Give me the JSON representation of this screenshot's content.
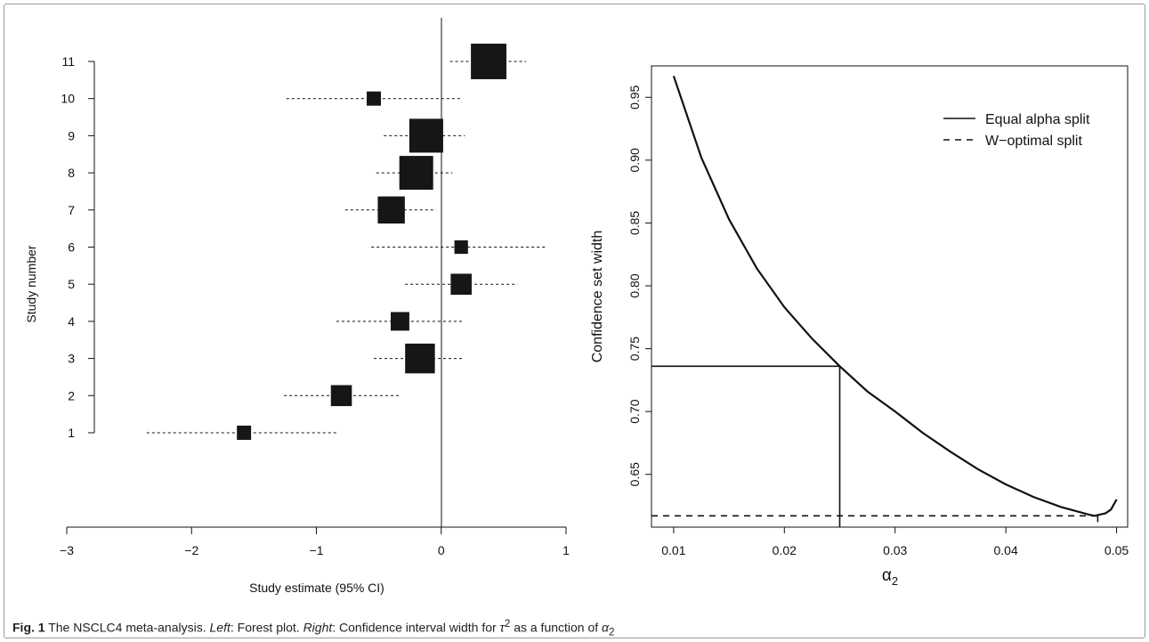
{
  "caption": {
    "label": "Fig. 1",
    "text_1": " The NSCLC4 meta-analysis. ",
    "left_word": "Left",
    "text_2": ": Forest plot. ",
    "right_word": "Right",
    "text_3": ": Confidence interval width for ",
    "tau_symbol": "τ",
    "tau_exp": "2",
    "text_4": " as a function of ",
    "alpha_symbol": "α",
    "alpha_sub": "2"
  },
  "chart_data": [
    {
      "type": "scatter",
      "subtype": "forest",
      "xlabel": "Study estimate (95% CI)",
      "ylabel": "Study number",
      "xlim": [
        -3,
        1
      ],
      "xticks": [
        -3,
        -2,
        -1,
        0,
        1
      ],
      "xtick_labels": [
        "−3",
        "−2",
        "−1",
        "0",
        "1"
      ],
      "yticks": [
        1,
        2,
        3,
        4,
        5,
        6,
        7,
        8,
        9,
        10,
        11
      ],
      "yticklabels": [
        "1",
        "2",
        "3",
        "4",
        "5",
        "6",
        "7",
        "8",
        "9",
        "10",
        "11"
      ],
      "reference_line_x": 0,
      "grid": false,
      "studies": [
        {
          "study": 1,
          "estimate": -1.58,
          "lower": -2.36,
          "upper": -0.82,
          "weight": 0.42
        },
        {
          "study": 2,
          "estimate": -0.8,
          "lower": -1.26,
          "upper": -0.34,
          "weight": 0.62
        },
        {
          "study": 3,
          "estimate": -0.17,
          "lower": -0.54,
          "upper": 0.18,
          "weight": 0.88
        },
        {
          "study": 4,
          "estimate": -0.33,
          "lower": -0.84,
          "upper": 0.18,
          "weight": 0.55
        },
        {
          "study": 5,
          "estimate": 0.16,
          "lower": -0.29,
          "upper": 0.61,
          "weight": 0.62
        },
        {
          "study": 6,
          "estimate": 0.16,
          "lower": -0.56,
          "upper": 0.84,
          "weight": 0.4
        },
        {
          "study": 7,
          "estimate": -0.4,
          "lower": -0.77,
          "upper": -0.04,
          "weight": 0.8
        },
        {
          "study": 8,
          "estimate": -0.2,
          "lower": -0.52,
          "upper": 0.09,
          "weight": 1.0
        },
        {
          "study": 9,
          "estimate": -0.12,
          "lower": -0.46,
          "upper": 0.19,
          "weight": 1.0
        },
        {
          "study": 10,
          "estimate": -0.54,
          "lower": -1.24,
          "upper": 0.16,
          "weight": 0.42
        },
        {
          "study": 11,
          "estimate": 0.38,
          "lower": 0.07,
          "upper": 0.68,
          "weight": 1.05
        }
      ]
    },
    {
      "type": "line",
      "xlabel_symbol": "α",
      "xlabel_sub": "2",
      "ylabel": "Confidence set width",
      "xlim": [
        0.008,
        0.051
      ],
      "ylim": [
        0.608,
        0.975
      ],
      "xticks": [
        0.01,
        0.02,
        0.03,
        0.04,
        0.05
      ],
      "xtick_labels": [
        "0.01",
        "0.02",
        "0.03",
        "0.04",
        "0.05"
      ],
      "yticks": [
        0.65,
        0.7,
        0.75,
        0.8,
        0.85,
        0.9,
        0.95
      ],
      "ytick_labels": [
        "0.65",
        "0.70",
        "0.75",
        "0.80",
        "0.85",
        "0.90",
        "0.95"
      ],
      "grid": false,
      "legend_position": "top-right",
      "legend": [
        {
          "label": "Equal alpha split",
          "style": "solid"
        },
        {
          "label": "W−optimal split",
          "style": "dashed"
        }
      ],
      "series": [
        {
          "style": "solid",
          "x": [
            0.01,
            0.0125,
            0.015,
            0.0175,
            0.02,
            0.0225,
            0.025,
            0.0275,
            0.03,
            0.0325,
            0.035,
            0.0375,
            0.04,
            0.0425,
            0.045,
            0.0475,
            0.048,
            0.049,
            0.0495,
            0.05
          ],
          "y": [
            0.967,
            0.902,
            0.853,
            0.814,
            0.783,
            0.758,
            0.736,
            0.716,
            0.7,
            0.683,
            0.668,
            0.654,
            0.642,
            0.632,
            0.624,
            0.618,
            0.617,
            0.619,
            0.622,
            0.63
          ]
        }
      ],
      "reference_lines": [
        {
          "label": "Equal alpha split",
          "style": "solid",
          "x": 0.025,
          "y": 0.736
        },
        {
          "label": "W−optimal split",
          "style": "dashed",
          "x": 0.0483,
          "y": 0.617
        }
      ]
    }
  ]
}
